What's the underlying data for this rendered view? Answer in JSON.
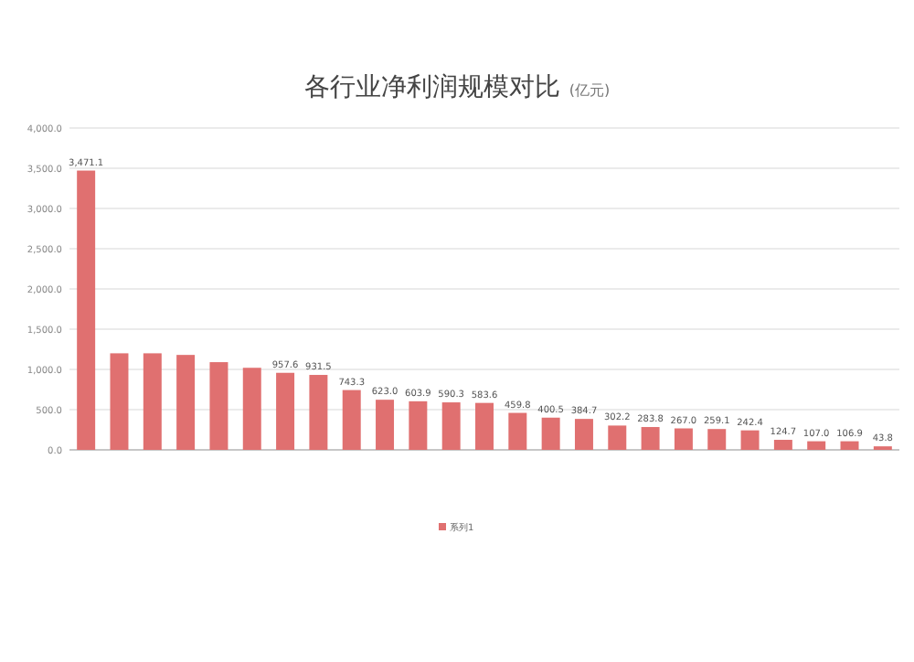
{
  "chart_data": {
    "type": "bar",
    "title": "各行业净利润规模对比",
    "subtitle": "(亿元)",
    "categories": [
      null,
      null,
      null,
      null,
      null,
      null,
      null,
      null,
      null,
      null,
      null,
      null,
      null,
      null,
      null,
      null,
      null,
      null,
      null,
      null,
      null,
      null,
      null,
      null,
      null
    ],
    "series": [
      {
        "name": "系列1",
        "color": "#e07070",
        "values": [
          3471.1,
          1200,
          1200,
          1180,
          1090,
          1020,
          957.6,
          931.5,
          743.3,
          623.0,
          603.9,
          590.3,
          583.6,
          459.8,
          400.5,
          384.7,
          302.2,
          283.8,
          267.0,
          259.1,
          242.4,
          124.7,
          107.0,
          106.9,
          43.8
        ],
        "value_labels": [
          "3,471.1",
          null,
          null,
          null,
          null,
          null,
          "957.6",
          "931.5",
          "743.3",
          "623.0",
          "603.9",
          "590.3",
          "583.6",
          "459.8",
          "400.5",
          "384.7",
          "302.2",
          "283.8",
          "267.0",
          "259.1",
          "242.4",
          "124.7",
          "107.0",
          "106.9",
          "43.8"
        ]
      }
    ],
    "ylim": [
      0,
      4000
    ],
    "yticks": [
      {
        "value": 0,
        "label": "0.0"
      },
      {
        "value": 500,
        "label": "500.0"
      },
      {
        "value": 1000,
        "label": "1,000.0"
      },
      {
        "value": 1500,
        "label": "1,500.0"
      },
      {
        "value": 2000,
        "label": "2,000.0"
      },
      {
        "value": 2500,
        "label": "2,500.0"
      },
      {
        "value": 3000,
        "label": "3,000.0"
      },
      {
        "value": 3500,
        "label": "3,500.0"
      },
      {
        "value": 4000,
        "label": "4,000.0"
      }
    ],
    "grid": "y",
    "legend": "bottom"
  }
}
